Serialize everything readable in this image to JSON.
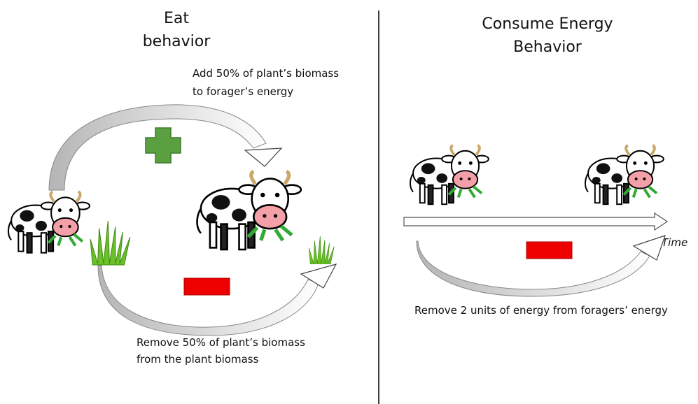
{
  "left": {
    "title": [
      "Eat",
      "behavior"
    ],
    "gain_label": [
      "Add 50% of plant’s biomass",
      "to forager’s energy"
    ],
    "loss_label": [
      "Remove 50% of plant’s biomass",
      "from the plant biomass"
    ]
  },
  "right": {
    "title": [
      "Consume Energy",
      "Behavior"
    ],
    "axis_label": "Time",
    "loss_label": "Remove 2 units of energy from foragers’ energy"
  }
}
